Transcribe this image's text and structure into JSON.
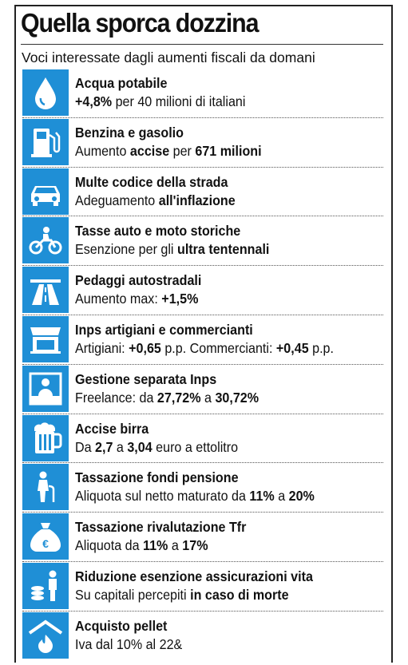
{
  "title": "Quella sporca dozzina",
  "subtitle": "Voci interessate dagli aumenti fiscali da domani",
  "items": [
    {
      "icon": "water-drop-icon",
      "title": "Acqua potabile",
      "detail": [
        {
          "t": "+4,8%",
          "b": true
        },
        {
          "t": " per 40 milioni di italiani",
          "b": false
        }
      ]
    },
    {
      "icon": "fuel-pump-icon",
      "title": "Benzina e gasolio",
      "detail": [
        {
          "t": "Aumento ",
          "b": false
        },
        {
          "t": "accise",
          "b": true
        },
        {
          "t": " per ",
          "b": false
        },
        {
          "t": "671 milioni",
          "b": true
        }
      ]
    },
    {
      "icon": "car-icon",
      "title": "Multe codice della strada",
      "detail": [
        {
          "t": "Adeguamento ",
          "b": false
        },
        {
          "t": "all'inflazione",
          "b": true
        }
      ]
    },
    {
      "icon": "motorcycle-icon",
      "title": "Tasse auto e moto storiche",
      "detail": [
        {
          "t": "Esenzione per gli ",
          "b": false
        },
        {
          "t": "ultra tentennali",
          "b": true
        }
      ]
    },
    {
      "icon": "highway-icon",
      "title": "Pedaggi autostradali",
      "detail": [
        {
          "t": "Aumento max: ",
          "b": false
        },
        {
          "t": "+1,5%",
          "b": true
        }
      ]
    },
    {
      "icon": "shop-icon",
      "title": "Inps artigiani e commercianti",
      "detail": [
        {
          "t": "Artigiani: ",
          "b": false
        },
        {
          "t": "+0,65",
          "b": true
        },
        {
          "t": " p.p. Commercianti: ",
          "b": false
        },
        {
          "t": "+0,45",
          "b": true
        },
        {
          "t": " p.p.",
          "b": false
        }
      ]
    },
    {
      "icon": "worker-at-desk-icon",
      "title": "Gestione separata Inps",
      "detail": [
        {
          "t": "Freelance: da ",
          "b": false
        },
        {
          "t": "27,72%",
          "b": true
        },
        {
          "t": " a ",
          "b": false
        },
        {
          "t": "30,72%",
          "b": true
        }
      ]
    },
    {
      "icon": "beer-mug-icon",
      "title": "Accise birra",
      "detail": [
        {
          "t": "Da ",
          "b": false
        },
        {
          "t": "2,7",
          "b": true
        },
        {
          "t": " a ",
          "b": false
        },
        {
          "t": "3,04",
          "b": true
        },
        {
          "t": " euro a ettolitro",
          "b": false
        }
      ]
    },
    {
      "icon": "elderly-person-icon",
      "title": "Tassazione fondi pensione",
      "detail": [
        {
          "t": "Aliquota sul netto maturato da ",
          "b": false
        },
        {
          "t": "11%",
          "b": true
        },
        {
          "t": " a ",
          "b": false
        },
        {
          "t": "20%",
          "b": true
        }
      ]
    },
    {
      "icon": "euro-money-bag-icon",
      "title": "Tassazione rivalutazione Tfr",
      "detail": [
        {
          "t": "Aliquota da ",
          "b": false
        },
        {
          "t": "11%",
          "b": true
        },
        {
          "t": " a ",
          "b": false
        },
        {
          "t": "17%",
          "b": true
        }
      ]
    },
    {
      "icon": "person-with-coins-icon",
      "title": "Riduzione esenzione assicurazioni vita",
      "detail": [
        {
          "t": "Su capitali percepiti ",
          "b": false
        },
        {
          "t": "in caso di morte",
          "b": true
        }
      ]
    },
    {
      "icon": "flame-under-roof-icon",
      "title": "Acquisto pellet",
      "detail": [
        {
          "t": "Iva dal 10% al 22&",
          "b": false
        }
      ]
    }
  ],
  "colors": {
    "icon_background": "#1f8fd6",
    "icon_foreground": "#ffffff",
    "text": "#111111"
  }
}
